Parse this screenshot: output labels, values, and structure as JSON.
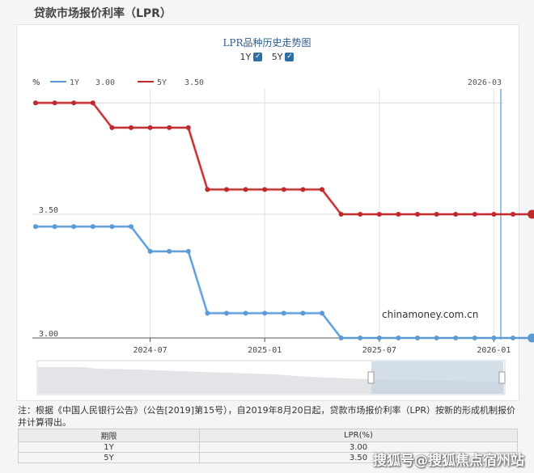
{
  "page_title": "贷款市场报价利率（LPR）",
  "chart_data": {
    "type": "line",
    "title": "LPR品种历史走势图",
    "toggles": [
      {
        "label": "1Y",
        "checked": true
      },
      {
        "label": "5Y",
        "checked": true
      }
    ],
    "ylabel": "%",
    "ylim": [
      3.0,
      3.95
    ],
    "xlim": [
      "2024-01",
      "2026-03"
    ],
    "y_ticks": [
      "3.50",
      "3.00"
    ],
    "x_ticks": [
      "2024-07",
      "2025-01",
      "2025-07",
      "2026-01"
    ],
    "tooltip_date": "2026-03",
    "x": [
      "2024-01",
      "2024-02",
      "2024-03",
      "2024-04",
      "2024-05",
      "2024-06",
      "2024-07",
      "2024-08",
      "2024-09",
      "2024-10",
      "2024-11",
      "2024-12",
      "2025-01",
      "2025-02",
      "2025-03",
      "2025-04",
      "2025-05",
      "2025-06",
      "2025-07",
      "2025-08",
      "2025-09",
      "2025-10",
      "2025-11",
      "2025-12",
      "2026-01",
      "2026-02",
      "2026-03"
    ],
    "series": [
      {
        "name": "1Y",
        "legend_value": "3.00",
        "color": "#5b9bd5",
        "values": [
          3.45,
          3.45,
          3.45,
          3.45,
          3.45,
          3.45,
          3.35,
          3.35,
          3.35,
          3.1,
          3.1,
          3.1,
          3.1,
          3.1,
          3.1,
          3.1,
          3.0,
          3.0,
          3.0,
          3.0,
          3.0,
          3.0,
          3.0,
          3.0,
          3.0,
          3.0,
          3.0
        ]
      },
      {
        "name": "5Y",
        "legend_value": "3.50",
        "color": "#c0282b",
        "values": [
          3.95,
          3.95,
          3.95,
          3.95,
          3.85,
          3.85,
          3.85,
          3.85,
          3.85,
          3.6,
          3.6,
          3.6,
          3.6,
          3.6,
          3.6,
          3.6,
          3.5,
          3.5,
          3.5,
          3.5,
          3.5,
          3.5,
          3.5,
          3.5,
          3.5,
          3.5,
          3.5
        ]
      }
    ],
    "watermark": "chinamoney.com.cn"
  },
  "note": "注：根据《中国人民银行公告》（公告[2019]第15号），自2019年8月20日起，贷款市场报价利率（LPR）按新的形成机制报价并计算得出。",
  "table": {
    "headers": [
      "期限",
      "LPR(%)"
    ],
    "rows": [
      [
        "1Y",
        "3.00"
      ],
      [
        "5Y",
        "3.50"
      ]
    ]
  },
  "image_watermark": "搜狐号@搜狐焦点宿州站",
  "colors": {
    "axis_blue": "#2d6ea6",
    "line_1y": "#5b9bd5",
    "line_5y": "#c0282b"
  }
}
